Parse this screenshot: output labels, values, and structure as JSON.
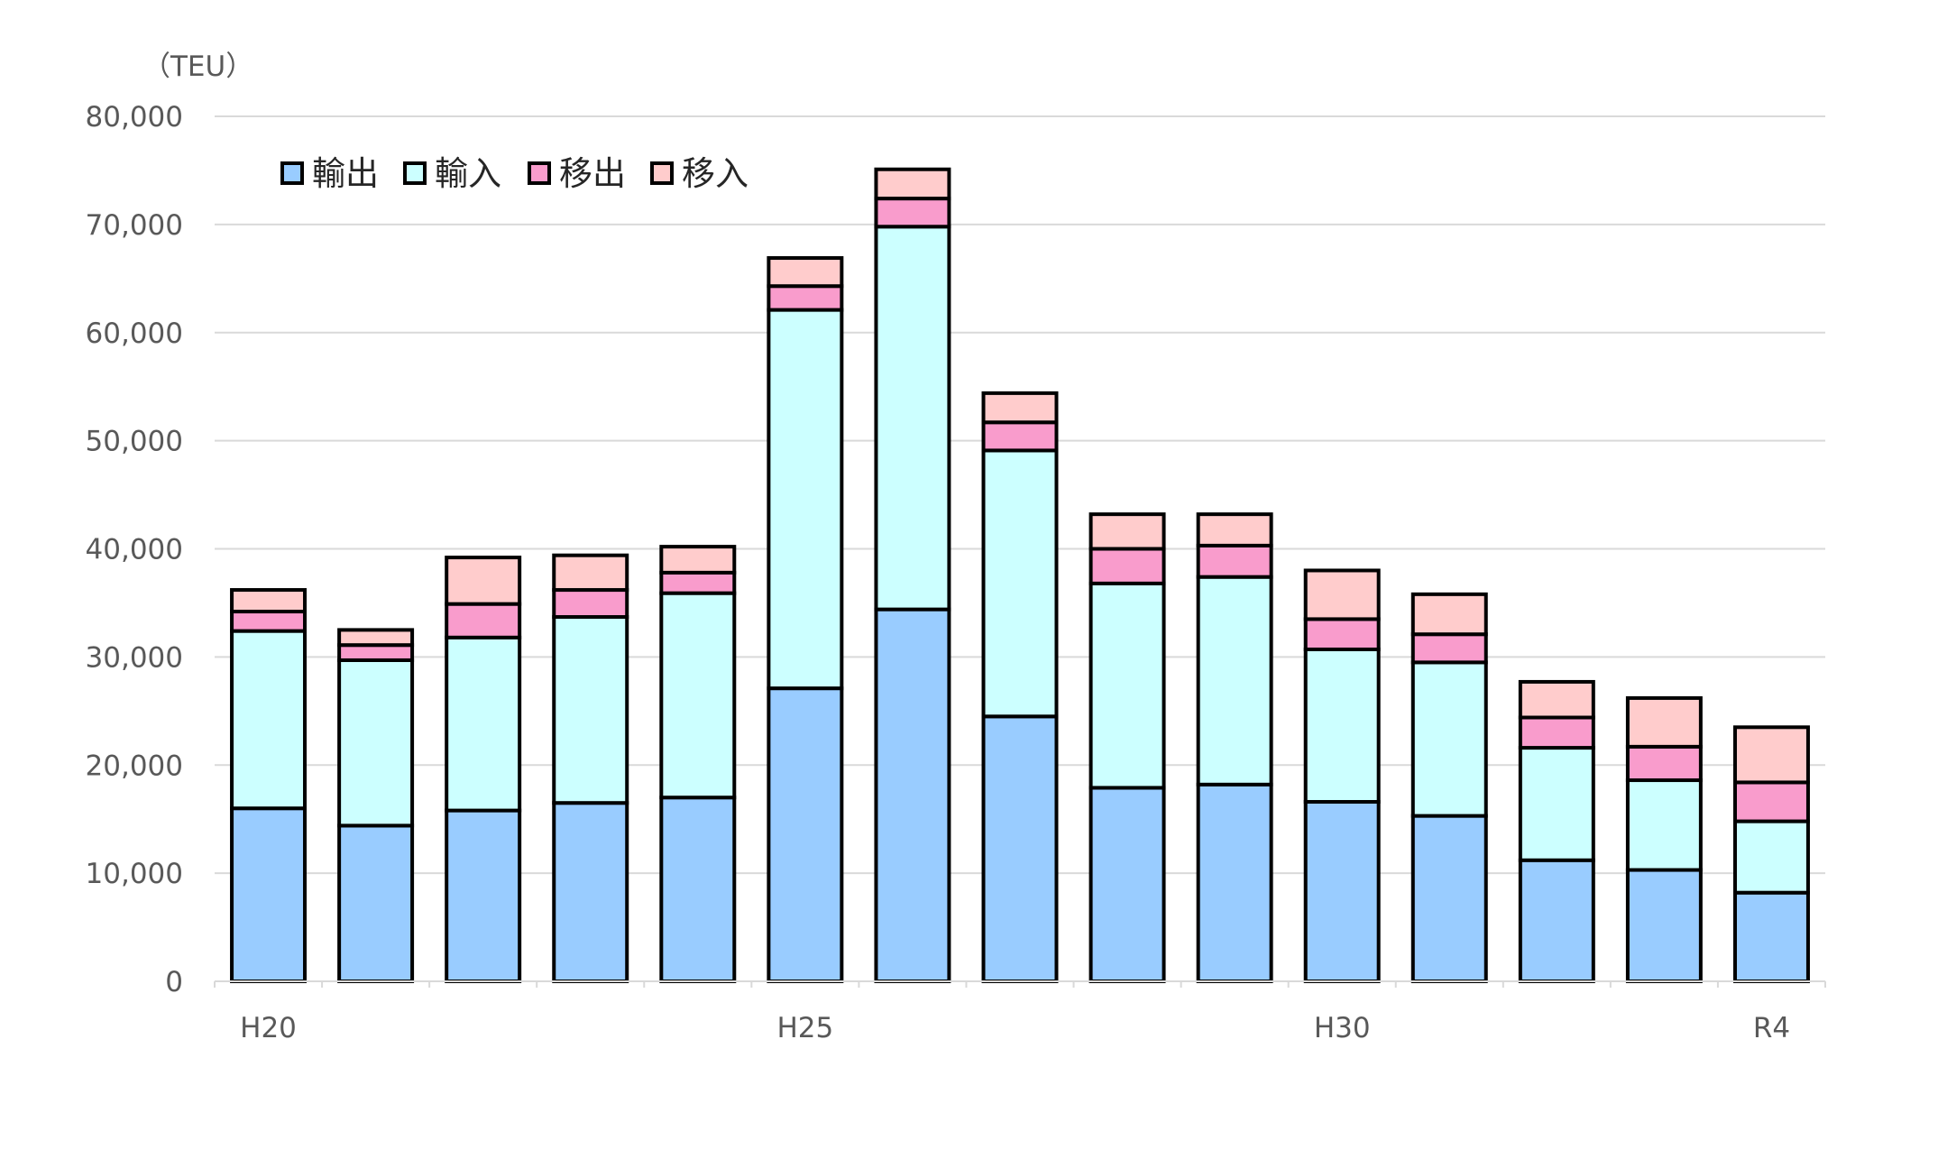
{
  "chart_data": {
    "type": "bar",
    "stacked": true,
    "title": "",
    "unit_label": "（TEU）",
    "xlabel": "",
    "ylabel": "",
    "ylim": [
      0,
      80000
    ],
    "yticks": [
      0,
      10000,
      20000,
      30000,
      40000,
      50000,
      60000,
      70000,
      80000
    ],
    "ytick_labels": [
      "0",
      "10,000",
      "20,000",
      "30,000",
      "40,000",
      "50,000",
      "60,000",
      "70,000",
      "80,000"
    ],
    "grid": true,
    "legend_position": "top-left",
    "categories": [
      "H20",
      "",
      "",
      "",
      "",
      "H25",
      "",
      "",
      "",
      "",
      "H30",
      "",
      "",
      "",
      "R4"
    ],
    "series": [
      {
        "name": "輸出",
        "color": "#99CCFF",
        "values": [
          16000,
          14400,
          15800,
          16500,
          17000,
          27100,
          34400,
          24500,
          17900,
          18200,
          16600,
          15300,
          11200,
          10300,
          8200
        ]
      },
      {
        "name": "輸入",
        "color": "#CCFFFF",
        "values": [
          16400,
          15300,
          16000,
          17200,
          18900,
          35000,
          35400,
          24600,
          18900,
          19200,
          14100,
          14200,
          10400,
          8300,
          6600
        ]
      },
      {
        "name": "移出",
        "color": "#F99CCC",
        "values": [
          1800,
          1400,
          3100,
          2500,
          1900,
          2200,
          2600,
          2600,
          3200,
          2900,
          2800,
          2600,
          2800,
          3100,
          3600
        ]
      },
      {
        "name": "移入",
        "color": "#FFCCCC",
        "values": [
          2000,
          1400,
          4300,
          3200,
          2400,
          2600,
          2700,
          2700,
          3200,
          2900,
          4500,
          3700,
          3300,
          4500,
          5100
        ]
      }
    ],
    "colors": {
      "grid": "#D9D9D9",
      "axis_text": "#595959",
      "bar_outline": "#000000"
    }
  }
}
